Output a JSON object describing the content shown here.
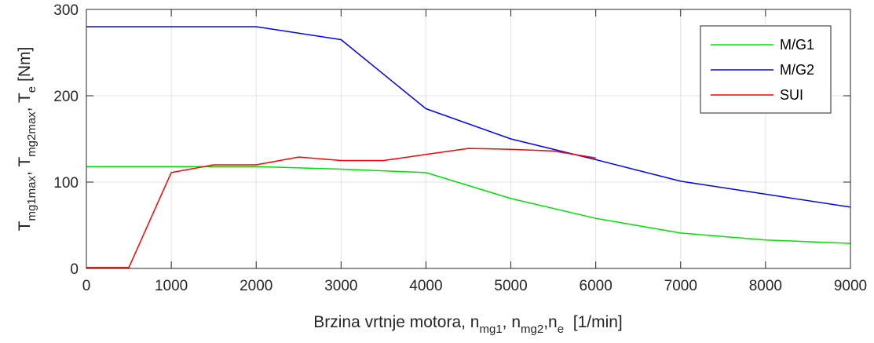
{
  "chart_data": {
    "type": "line",
    "xlabel": {
      "main": "Brzina vrtnje motora, n",
      "sub1": "mg1",
      "sep1": ", n",
      "sub2": "mg2",
      "sep2": ",n",
      "sub3": "e",
      "unit": "  [1/min]"
    },
    "ylabel": {
      "t1": "T",
      "s1": "mg1max",
      "sep1": ", T",
      "s2": "mg2max",
      "sep2": ", T",
      "s3": "e",
      "unit": " [Nm]"
    },
    "xlim": [
      0,
      9000
    ],
    "ylim": [
      0,
      300
    ],
    "xticks": [
      0,
      1000,
      2000,
      3000,
      4000,
      5000,
      6000,
      7000,
      8000,
      9000
    ],
    "yticks": [
      0,
      100,
      200,
      300
    ],
    "grid": true,
    "legend_position": "top-right",
    "series": [
      {
        "name": "M/G1",
        "color": "#00e000",
        "x": [
          0,
          1000,
          2000,
          3000,
          4000,
          5000,
          6000,
          7000,
          8000,
          9000
        ],
        "y": [
          118,
          118,
          118,
          115,
          111,
          81,
          58,
          41,
          33,
          29
        ]
      },
      {
        "name": "M/G2",
        "color": "#0000ff",
        "x": [
          0,
          1000,
          2000,
          3000,
          4000,
          5000,
          6000,
          7000,
          8000,
          9000
        ],
        "y": [
          280,
          280,
          280,
          265,
          185,
          150,
          126,
          101,
          86,
          71
        ]
      },
      {
        "name": "SUI",
        "color": "#ff0000",
        "x": [
          0,
          500,
          1000,
          1500,
          2000,
          2500,
          3000,
          3500,
          4000,
          4500,
          5000,
          5500,
          6000
        ],
        "y": [
          1,
          1,
          111,
          120,
          120,
          129,
          125,
          125,
          132,
          139,
          138,
          136,
          128
        ]
      }
    ]
  }
}
